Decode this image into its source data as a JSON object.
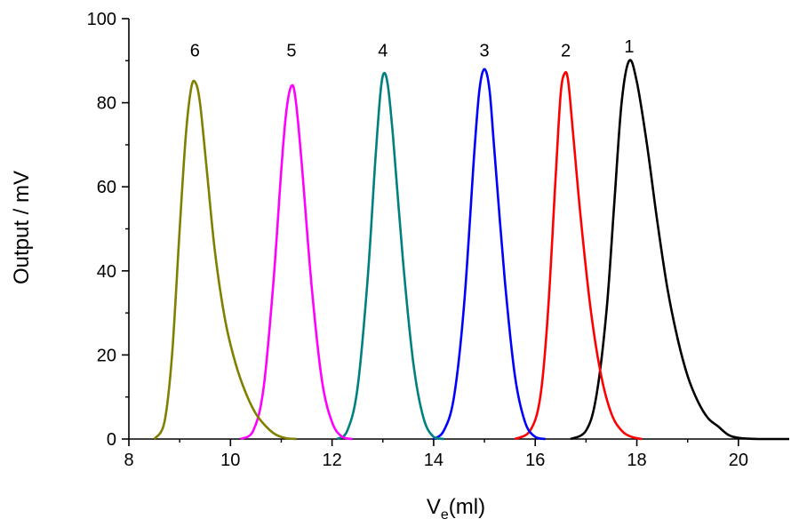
{
  "chart_data": {
    "type": "line",
    "xlabel": {
      "main": "V",
      "sub": "e",
      "tail": "(ml)"
    },
    "ylabel": "Output / mV",
    "xlim": [
      8,
      21
    ],
    "ylim": [
      0,
      100
    ],
    "xticks": [
      8,
      10,
      12,
      14,
      16,
      18,
      20
    ],
    "yticks": [
      0,
      20,
      40,
      60,
      80,
      100
    ],
    "grid": false,
    "legend": "none",
    "series": [
      {
        "label": "1",
        "color": "#000000",
        "points": [
          [
            16.7,
            0
          ],
          [
            17.0,
            2
          ],
          [
            17.2,
            10
          ],
          [
            17.4,
            30
          ],
          [
            17.55,
            55
          ],
          [
            17.7,
            80
          ],
          [
            17.85,
            90
          ],
          [
            18.0,
            85
          ],
          [
            18.2,
            70
          ],
          [
            18.4,
            52
          ],
          [
            18.6,
            36
          ],
          [
            18.8,
            24
          ],
          [
            19.0,
            15
          ],
          [
            19.2,
            9
          ],
          [
            19.4,
            5
          ],
          [
            19.6,
            3
          ],
          [
            19.8,
            1
          ],
          [
            20.0,
            0.3
          ],
          [
            20.4,
            0
          ],
          [
            21.0,
            0
          ]
        ]
      },
      {
        "label": "2",
        "color": "#ff0000",
        "points": [
          [
            15.6,
            0
          ],
          [
            15.9,
            2
          ],
          [
            16.1,
            10
          ],
          [
            16.25,
            30
          ],
          [
            16.4,
            62
          ],
          [
            16.5,
            82
          ],
          [
            16.58,
            87
          ],
          [
            16.65,
            85
          ],
          [
            16.75,
            72
          ],
          [
            16.9,
            52
          ],
          [
            17.1,
            30
          ],
          [
            17.3,
            15
          ],
          [
            17.5,
            6
          ],
          [
            17.7,
            2
          ],
          [
            17.9,
            0.5
          ],
          [
            18.1,
            0
          ]
        ]
      },
      {
        "label": "3",
        "color": "#0000ff",
        "points": [
          [
            14.0,
            0
          ],
          [
            14.2,
            2
          ],
          [
            14.4,
            10
          ],
          [
            14.6,
            32
          ],
          [
            14.8,
            68
          ],
          [
            14.9,
            83
          ],
          [
            15.0,
            88
          ],
          [
            15.1,
            83
          ],
          [
            15.2,
            68
          ],
          [
            15.4,
            38
          ],
          [
            15.6,
            15
          ],
          [
            15.8,
            4
          ],
          [
            16.0,
            0.5
          ],
          [
            16.2,
            0
          ]
        ]
      },
      {
        "label": "4",
        "color": "#008080",
        "points": [
          [
            12.1,
            0
          ],
          [
            12.3,
            2
          ],
          [
            12.5,
            12
          ],
          [
            12.7,
            38
          ],
          [
            12.85,
            66
          ],
          [
            12.95,
            82
          ],
          [
            13.02,
            87
          ],
          [
            13.1,
            84
          ],
          [
            13.2,
            72
          ],
          [
            13.4,
            42
          ],
          [
            13.6,
            18
          ],
          [
            13.8,
            5
          ],
          [
            14.0,
            0.5
          ],
          [
            14.2,
            0
          ]
        ]
      },
      {
        "label": "5",
        "color": "#ff00ff",
        "points": [
          [
            10.2,
            0
          ],
          [
            10.45,
            2
          ],
          [
            10.65,
            12
          ],
          [
            10.85,
            38
          ],
          [
            11.0,
            64
          ],
          [
            11.1,
            78
          ],
          [
            11.2,
            84
          ],
          [
            11.28,
            81
          ],
          [
            11.4,
            66
          ],
          [
            11.6,
            36
          ],
          [
            11.8,
            14
          ],
          [
            12.0,
            4
          ],
          [
            12.2,
            0.5
          ],
          [
            12.4,
            0
          ]
        ]
      },
      {
        "label": "6",
        "color": "#808000",
        "points": [
          [
            8.5,
            0
          ],
          [
            8.7,
            4
          ],
          [
            8.85,
            20
          ],
          [
            9.0,
            50
          ],
          [
            9.12,
            72
          ],
          [
            9.22,
            83
          ],
          [
            9.3,
            85
          ],
          [
            9.4,
            80
          ],
          [
            9.55,
            62
          ],
          [
            9.7,
            44
          ],
          [
            9.9,
            28
          ],
          [
            10.1,
            18
          ],
          [
            10.3,
            11
          ],
          [
            10.5,
            6
          ],
          [
            10.7,
            3
          ],
          [
            10.9,
            1
          ],
          [
            11.1,
            0.2
          ],
          [
            11.3,
            0
          ]
        ]
      }
    ],
    "peak_labels": [
      {
        "text": "6",
        "x": 9.3,
        "y": 91
      },
      {
        "text": "5",
        "x": 11.2,
        "y": 91
      },
      {
        "text": "4",
        "x": 13.0,
        "y": 91
      },
      {
        "text": "3",
        "x": 15.0,
        "y": 91
      },
      {
        "text": "2",
        "x": 16.6,
        "y": 91
      },
      {
        "text": "1",
        "x": 17.85,
        "y": 92
      }
    ]
  }
}
